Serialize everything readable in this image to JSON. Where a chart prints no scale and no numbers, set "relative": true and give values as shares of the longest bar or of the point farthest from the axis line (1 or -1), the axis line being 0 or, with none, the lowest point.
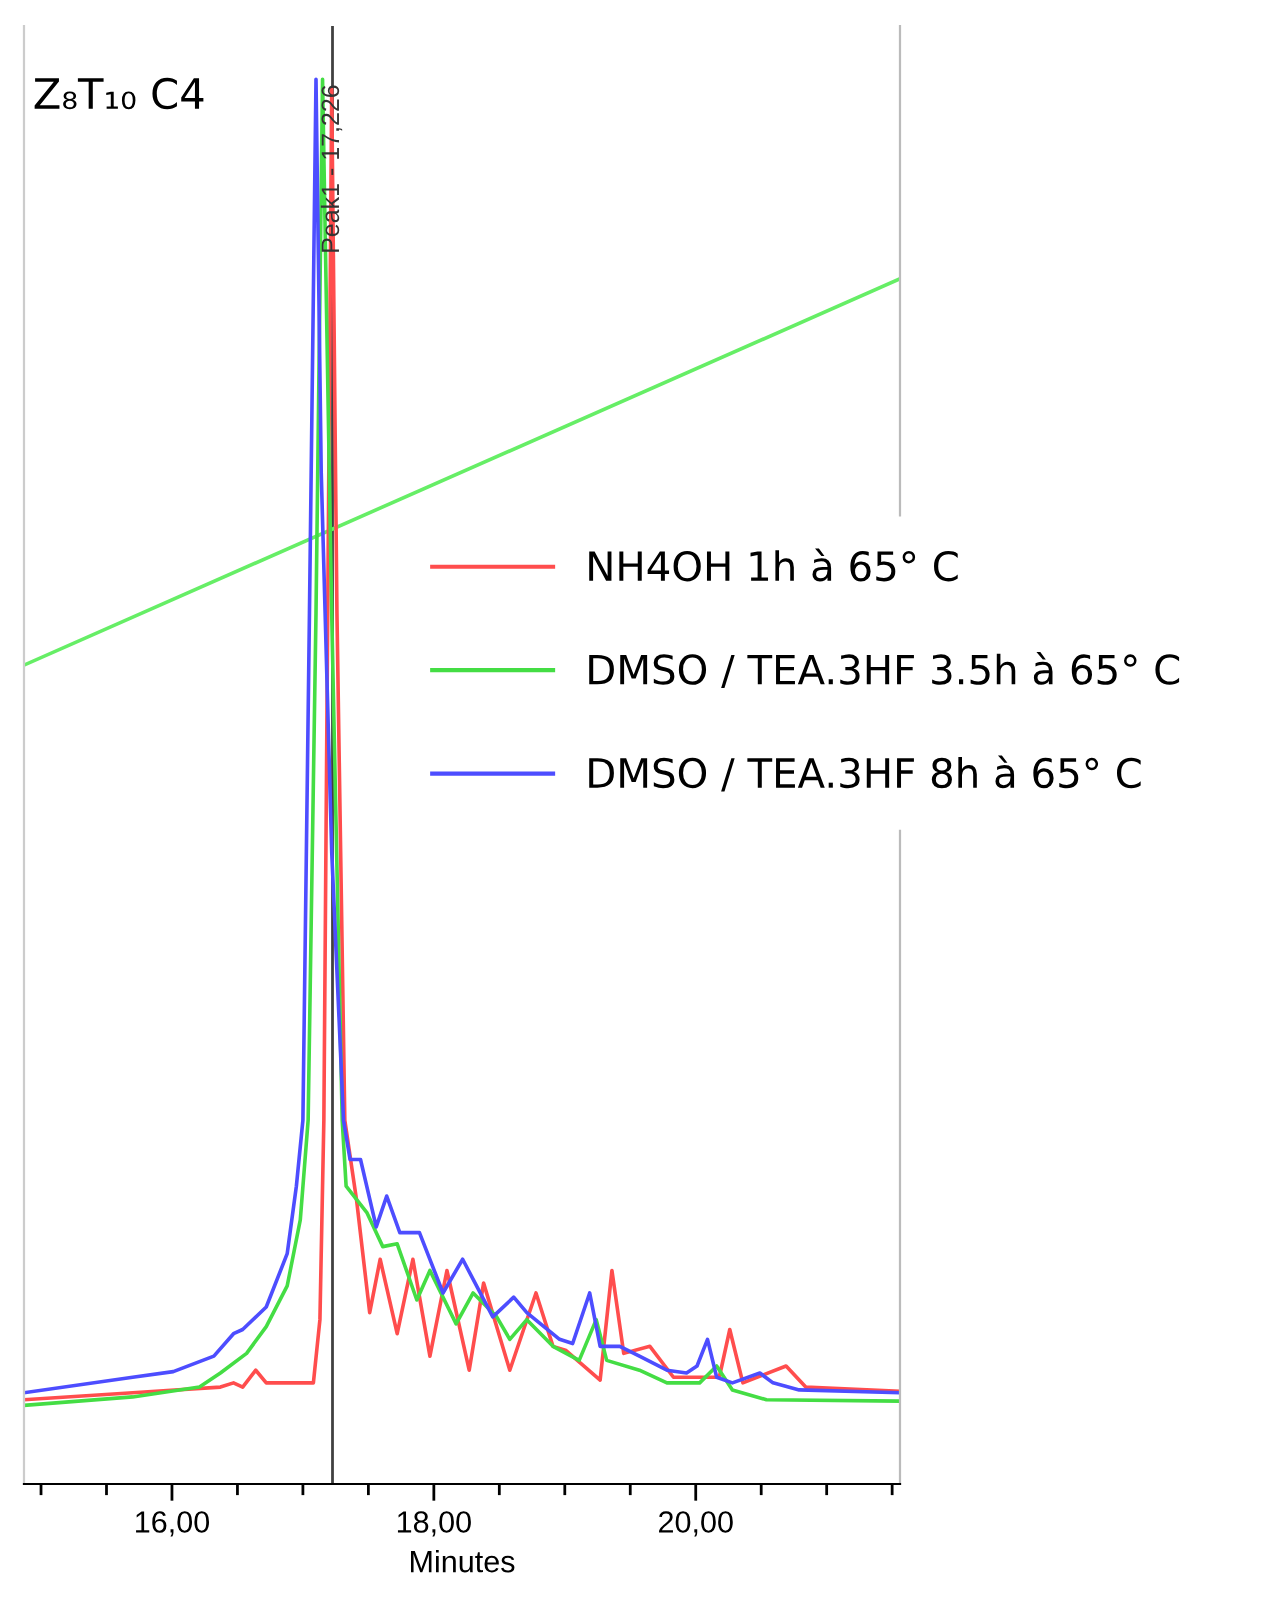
{
  "chart_data": {
    "type": "line",
    "title": "Z₈T₁₀ C4",
    "xlabel": "Minutes",
    "relative": true,
    "xlim": [
      14.87,
      21.56
    ],
    "xticks": [
      {
        "value": 15.0,
        "label": null
      },
      {
        "value": 15.5,
        "label": null
      },
      {
        "value": 16,
        "label": "16,00"
      },
      {
        "value": 16.5,
        "label": null
      },
      {
        "value": 17.0,
        "label": null
      },
      {
        "value": 17.5,
        "label": null
      },
      {
        "value": 18,
        "label": "18,00"
      },
      {
        "value": 18.5,
        "label": null
      },
      {
        "value": 19.0,
        "label": null
      },
      {
        "value": 19.5,
        "label": null
      },
      {
        "value": 20,
        "label": "20,00"
      },
      {
        "value": 20.5,
        "label": null
      },
      {
        "value": 21.0,
        "label": null
      },
      {
        "value": 21.5,
        "label": null
      }
    ],
    "legend": "right",
    "grid": false,
    "marker": "none",
    "line_style": "solid",
    "ref_lines": [
      {
        "axis": "x",
        "value": 17.226,
        "label": "Peak1 - 17,226",
        "color": "#404040"
      }
    ],
    "series": [
      {
        "type": "line",
        "color": "#66ee66",
        "x": [
          14.87,
          21.56
        ],
        "values": [
          0.583,
          0.858
        ]
      },
      {
        "name": "NH4OH 1h à 65° C",
        "color": "#ff4d4d",
        "x": [
          14.87,
          15.7,
          16.37,
          16.47,
          16.54,
          16.64,
          16.72,
          17.08,
          17.13,
          17.16,
          17.22,
          17.26,
          17.32,
          17.41,
          17.51,
          17.59,
          17.72,
          17.84,
          17.97,
          18.1,
          18.27,
          18.38,
          18.58,
          18.78,
          18.91,
          19.01,
          19.27,
          19.36,
          19.45,
          19.65,
          19.83,
          20.18,
          20.26,
          20.36,
          20.69,
          20.84,
          21.56
        ],
        "values": [
          0.06,
          0.065,
          0.069,
          0.072,
          0.069,
          0.081,
          0.072,
          0.072,
          0.117,
          0.259,
          0.993,
          0.62,
          0.259,
          0.202,
          0.122,
          0.16,
          0.107,
          0.16,
          0.091,
          0.152,
          0.081,
          0.143,
          0.081,
          0.136,
          0.098,
          0.095,
          0.074,
          0.152,
          0.093,
          0.098,
          0.076,
          0.076,
          0.11,
          0.072,
          0.084,
          0.069,
          0.066
        ]
      },
      {
        "name": "DMSO / TEA.3HF 3.5h à 65° C",
        "color": "#44dd44",
        "x": [
          14.87,
          15.7,
          16.21,
          16.37,
          16.57,
          16.72,
          16.88,
          16.98,
          17.04,
          17.1,
          17.15,
          17.22,
          17.3,
          17.33,
          17.49,
          17.61,
          17.72,
          17.87,
          17.97,
          18.17,
          18.3,
          18.48,
          18.58,
          18.71,
          18.91,
          19.11,
          19.24,
          19.32,
          19.57,
          19.78,
          20.03,
          20.16,
          20.28,
          20.54,
          21.56
        ],
        "values": [
          0.056,
          0.062,
          0.069,
          0.079,
          0.093,
          0.112,
          0.141,
          0.188,
          0.259,
          0.62,
          1.0,
          0.62,
          0.259,
          0.212,
          0.193,
          0.169,
          0.171,
          0.131,
          0.152,
          0.114,
          0.136,
          0.119,
          0.103,
          0.117,
          0.098,
          0.088,
          0.117,
          0.088,
          0.081,
          0.072,
          0.072,
          0.084,
          0.067,
          0.06,
          0.059
        ]
      },
      {
        "name": "DMSO / TEA.3HF 8h à 65° C",
        "color": "#4d4dff",
        "x": [
          14.87,
          15.7,
          16.01,
          16.32,
          16.47,
          16.54,
          16.72,
          16.88,
          16.95,
          17.0,
          17.05,
          17.1,
          17.14,
          17.22,
          17.31,
          17.36,
          17.44,
          17.56,
          17.64,
          17.74,
          17.89,
          18.07,
          18.22,
          18.45,
          18.61,
          18.71,
          18.96,
          19.06,
          19.19,
          19.27,
          19.42,
          19.57,
          19.78,
          19.93,
          20.01,
          20.09,
          20.16,
          20.28,
          20.49,
          20.59,
          20.79,
          21.56
        ],
        "values": [
          0.065,
          0.076,
          0.08,
          0.091,
          0.107,
          0.11,
          0.126,
          0.164,
          0.212,
          0.259,
          0.62,
          1.0,
          0.72,
          0.45,
          0.259,
          0.231,
          0.231,
          0.183,
          0.205,
          0.179,
          0.179,
          0.136,
          0.16,
          0.119,
          0.133,
          0.122,
          0.103,
          0.1,
          0.136,
          0.098,
          0.098,
          0.091,
          0.081,
          0.079,
          0.084,
          0.103,
          0.076,
          0.072,
          0.079,
          0.072,
          0.067,
          0.065
        ]
      }
    ]
  }
}
